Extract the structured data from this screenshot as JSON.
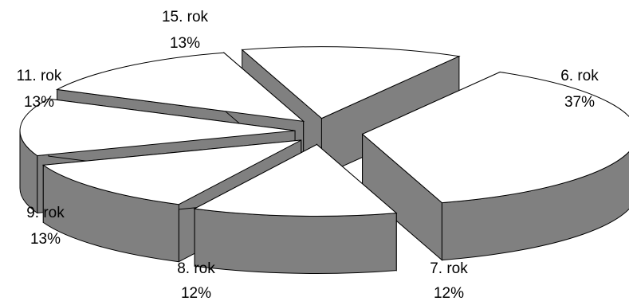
{
  "chart_data": {
    "type": "pie",
    "title": "",
    "style": "3d-exploded",
    "colors": {
      "top": "#ffffff",
      "side": "#808080",
      "outline": "#000000"
    },
    "slices": [
      {
        "label": "6. rok",
        "percent_label": "37%",
        "value": 37
      },
      {
        "label": "7. rok",
        "percent_label": "12%",
        "value": 12
      },
      {
        "label": "8. rok",
        "percent_label": "12%",
        "value": 12
      },
      {
        "label": "9. rok",
        "percent_label": "13%",
        "value": 13
      },
      {
        "label": "11. rok",
        "percent_label": "13%",
        "value": 13
      },
      {
        "label": "15. rok",
        "percent_label": "13%",
        "value": 13
      }
    ]
  }
}
